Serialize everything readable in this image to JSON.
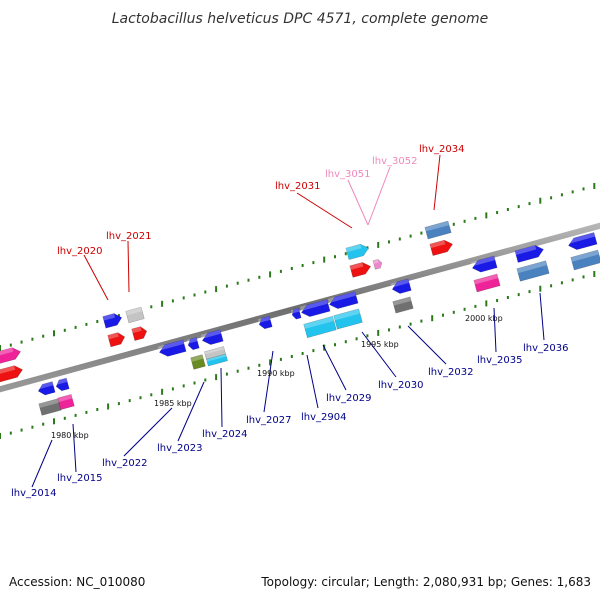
{
  "title": "Lactobacillus helveticus DPC 4571, complete genome",
  "footer": {
    "accession": "Accession: NC_010080",
    "summary": "Topology: circular; Length: 2,080,931 bp; Genes: 1,683"
  },
  "colors": {
    "backbone": "#8a8a8a",
    "tick": "#2a7a1a",
    "red_label": "#cc0000",
    "pink_label": "#ee88bb",
    "blue_label": "#000088"
  },
  "position_markers": [
    {
      "text": "1980 kbp"
    },
    {
      "text": "1985 kbp"
    },
    {
      "text": "1990 kbp"
    },
    {
      "text": "1995 kbp"
    },
    {
      "text": "2000 kbp"
    }
  ],
  "gene_labels": [
    {
      "text": "lhv_2020",
      "tone": "red"
    },
    {
      "text": "lhv_2021",
      "tone": "red"
    },
    {
      "text": "lhv_2031",
      "tone": "red"
    },
    {
      "text": "lhv_3051",
      "tone": "pink"
    },
    {
      "text": "lhv_3052",
      "tone": "pink"
    },
    {
      "text": "lhv_2034",
      "tone": "red"
    },
    {
      "text": "lhv_2014",
      "tone": "blue"
    },
    {
      "text": "lhv_2015",
      "tone": "blue"
    },
    {
      "text": "lhv_2022",
      "tone": "blue"
    },
    {
      "text": "lhv_2023",
      "tone": "blue"
    },
    {
      "text": "lhv_2024",
      "tone": "blue"
    },
    {
      "text": "lhv_2027",
      "tone": "blue"
    },
    {
      "text": "lhv_2904",
      "tone": "blue"
    },
    {
      "text": "lhv_2029",
      "tone": "blue"
    },
    {
      "text": "lhv_2030",
      "tone": "blue"
    },
    {
      "text": "lhv_2032",
      "tone": "blue"
    },
    {
      "text": "lhv_2035",
      "tone": "blue"
    },
    {
      "text": "lhv_2036",
      "tone": "blue"
    }
  ],
  "feature_colors": {
    "blue": "#1a1ae6",
    "red": "#ee1111",
    "magenta": "#ee2299",
    "gray": "#707070",
    "lightgray": "#c4c4c4",
    "cyan": "#22c4ee",
    "steel": "#4a82c0",
    "olive": "#6a8a22",
    "pink": "#ee88cc"
  }
}
